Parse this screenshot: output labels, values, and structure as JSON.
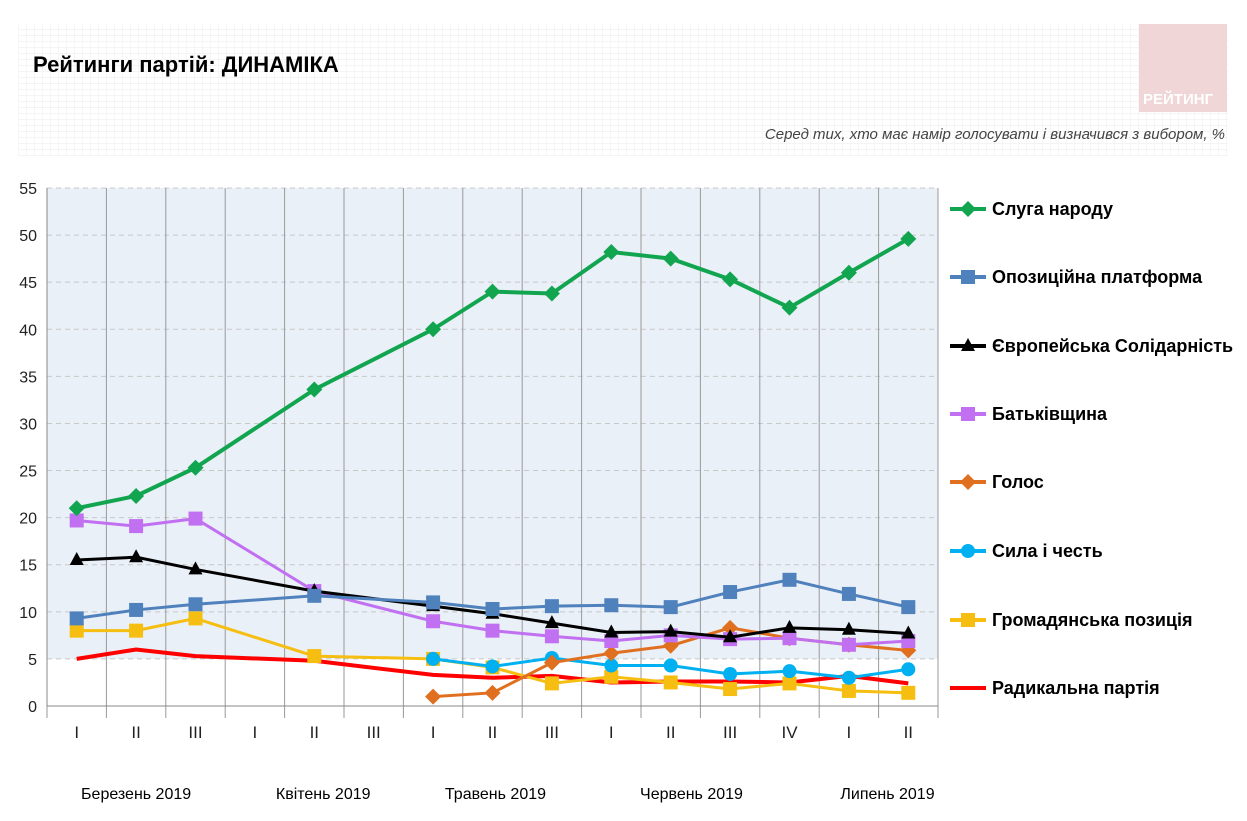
{
  "chart_data": {
    "type": "line",
    "title": "Рейтинги партій: ДИНАМІКА",
    "subtitle": "Серед тих, хто має намір голосувати і визначився з вибором, %",
    "logo_text": "РЕЙТИНГ",
    "ylim": [
      0,
      55
    ],
    "yticks": [
      0,
      5,
      10,
      15,
      20,
      25,
      30,
      35,
      40,
      45,
      50,
      55
    ],
    "categories": [
      "I",
      "II",
      "III",
      "I",
      "II",
      "III",
      "I",
      "II",
      "III",
      "I",
      "II",
      "III",
      "IV",
      "I",
      "II"
    ],
    "months": [
      {
        "label": "Березень 2019",
        "pos": 1
      },
      {
        "label": "Квітень 2019",
        "pos": 4.15
      },
      {
        "label": "Травень 2019",
        "pos": 7.05
      },
      {
        "label": "Червень 2019",
        "pos": 10.35
      },
      {
        "label": "Липень 2019",
        "pos": 13.65
      }
    ],
    "series": [
      {
        "name": "Слуга народу",
        "color": "#12a550",
        "marker": "diamond",
        "values": [
          21,
          22.3,
          25.3,
          null,
          33.6,
          null,
          40,
          44,
          43.8,
          48.2,
          47.5,
          45.3,
          42.3,
          46,
          49.6
        ]
      },
      {
        "name": "Опозиційна платформа",
        "color": "#4f81bd",
        "marker": "square",
        "values": [
          9.3,
          10.2,
          10.8,
          null,
          11.7,
          null,
          11,
          10.3,
          10.6,
          10.7,
          10.5,
          12.1,
          13.4,
          11.9,
          10.5
        ]
      },
      {
        "name": "Європейська Солідарність",
        "color": "#000000",
        "marker": "triangle",
        "values": [
          15.5,
          15.8,
          14.5,
          null,
          12.2,
          null,
          10.6,
          9.8,
          8.8,
          7.8,
          7.9,
          7.3,
          8.3,
          8.1,
          7.7
        ]
      },
      {
        "name": "Батьківщина",
        "color": "#c070f0",
        "marker": "square",
        "values": [
          19.7,
          19.1,
          19.9,
          null,
          12.2,
          null,
          9.0,
          8.0,
          7.4,
          6.9,
          7.5,
          7.1,
          7.2,
          6.5,
          6.9
        ]
      },
      {
        "name": "Голос",
        "color": "#e07020",
        "marker": "diamond",
        "values": [
          null,
          null,
          null,
          null,
          null,
          null,
          1.0,
          1.4,
          4.6,
          5.6,
          6.4,
          8.3,
          7.2,
          6.5,
          5.9
        ]
      },
      {
        "name": "Сила і честь",
        "color": "#00b0f0",
        "marker": "circle",
        "values": [
          null,
          null,
          null,
          null,
          null,
          null,
          5.0,
          4.2,
          5.1,
          4.3,
          4.3,
          3.4,
          3.7,
          3.0,
          3.9
        ]
      },
      {
        "name": "Громадянська позиція",
        "color": "#f5be10",
        "marker": "square",
        "values": [
          8.0,
          8.0,
          9.3,
          null,
          5.3,
          null,
          5.0,
          4.1,
          2.4,
          3.1,
          2.5,
          1.8,
          2.4,
          1.6,
          1.4
        ]
      },
      {
        "name": "Радикальна партія",
        "color": "#ff0000",
        "marker": "none",
        "values": [
          5.0,
          6.0,
          5.3,
          null,
          4.8,
          null,
          3.3,
          3.0,
          3.2,
          2.5,
          2.6,
          2.6,
          2.5,
          3.2,
          2.4
        ]
      }
    ],
    "legend": "right"
  }
}
